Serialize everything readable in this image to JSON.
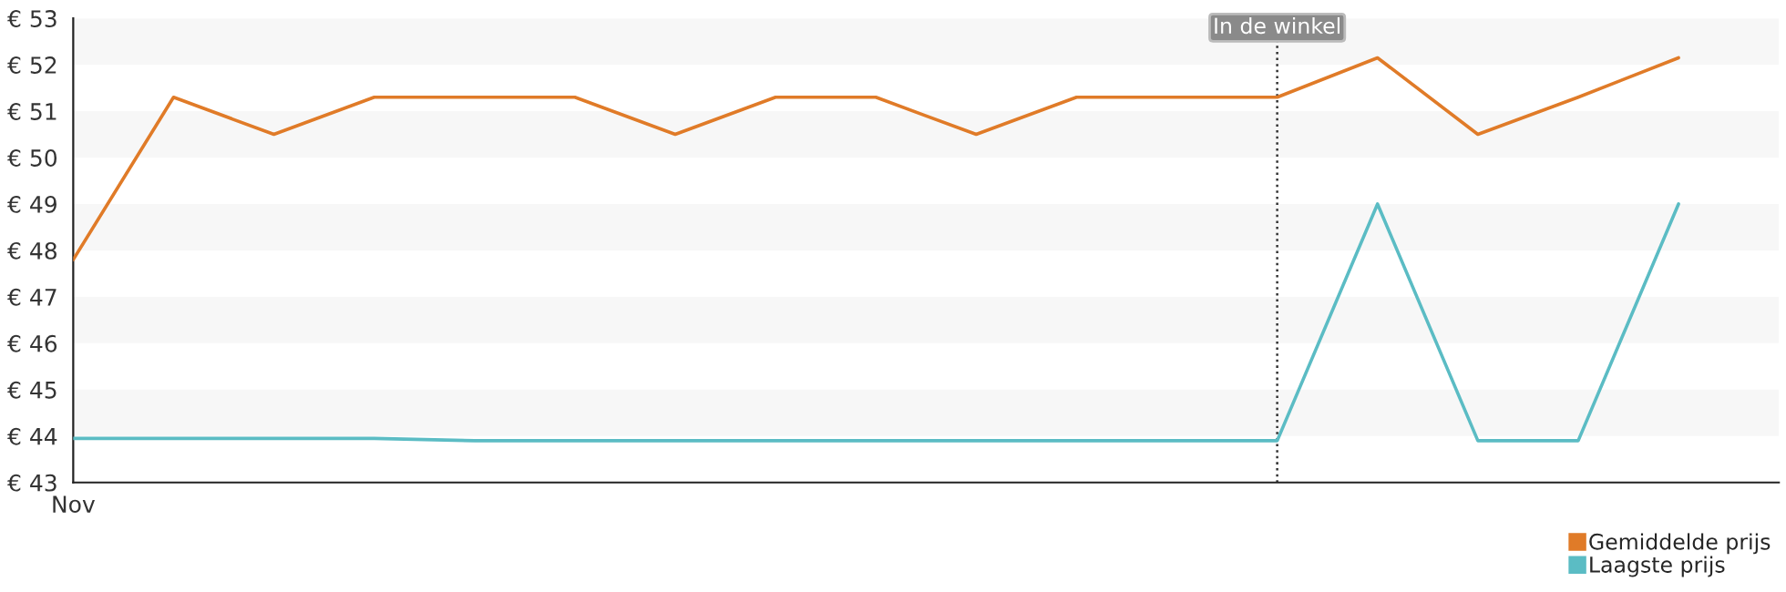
{
  "chart_data": {
    "type": "line",
    "categories": [
      "Nov",
      null,
      null,
      null,
      null,
      null,
      null,
      null,
      null,
      null,
      null,
      null,
      null,
      null,
      null,
      null,
      null,
      null
    ],
    "series": [
      {
        "name": "Gemiddelde prijs",
        "color": "#e07b28",
        "values": [
          47.8,
          51.3,
          50.5,
          51.3,
          51.3,
          51.3,
          50.5,
          51.3,
          51.3,
          50.5,
          51.3,
          51.3,
          51.3,
          52.15,
          50.5,
          51.3,
          52.15,
          null
        ]
      },
      {
        "name": "Laagste prijs",
        "color": "#5bbcc4",
        "values": [
          43.95,
          43.95,
          43.95,
          43.95,
          43.9,
          43.9,
          43.9,
          43.9,
          43.9,
          43.9,
          43.9,
          43.9,
          43.9,
          49.0,
          43.9,
          43.9,
          49.0,
          null
        ]
      }
    ],
    "ylim": [
      43,
      53
    ],
    "yticks": [
      {
        "value": 43,
        "label": "€ 43"
      },
      {
        "value": 44,
        "label": "€ 44"
      },
      {
        "value": 45,
        "label": "€ 45"
      },
      {
        "value": 46,
        "label": "€ 46"
      },
      {
        "value": 47,
        "label": "€ 47"
      },
      {
        "value": 48,
        "label": "€ 48"
      },
      {
        "value": 49,
        "label": "€ 49"
      },
      {
        "value": 50,
        "label": "€ 50"
      },
      {
        "value": 51,
        "label": "€ 51"
      },
      {
        "value": 52,
        "label": "€ 52"
      },
      {
        "value": 53,
        "label": "€ 53"
      }
    ],
    "annotations": [
      "In de winkel"
    ],
    "bands": [
      {
        "axis": "y",
        "from": 44,
        "to": 45,
        "color": "#f7f7f7"
      },
      {
        "axis": "y",
        "from": 46,
        "to": 47,
        "color": "#f7f7f7"
      },
      {
        "axis": "y",
        "from": 48,
        "to": 49,
        "color": "#f7f7f7"
      },
      {
        "axis": "y",
        "from": 50,
        "to": 51,
        "color": "#f7f7f7"
      },
      {
        "axis": "y",
        "from": 52,
        "to": 53,
        "color": "#f7f7f7"
      }
    ],
    "grid": false,
    "marker": "none",
    "line_style": "solid",
    "legend": "bottom right"
  }
}
